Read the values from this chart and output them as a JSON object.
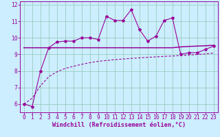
{
  "title": "",
  "xlabel": "Windchill (Refroidissement éolien,°C)",
  "background_color": "#cceeff",
  "grid_color": "#99ccbb",
  "line_color": "#990099",
  "x_values": [
    0,
    1,
    2,
    3,
    4,
    5,
    6,
    7,
    8,
    9,
    10,
    11,
    12,
    13,
    14,
    15,
    16,
    17,
    18,
    19,
    20,
    21,
    22,
    23
  ],
  "y_main": [
    6.0,
    5.85,
    8.0,
    9.4,
    9.75,
    9.8,
    9.8,
    10.0,
    10.0,
    9.9,
    11.3,
    11.05,
    11.05,
    11.7,
    10.5,
    9.8,
    10.1,
    11.05,
    11.2,
    9.0,
    9.1,
    9.1,
    9.3,
    9.5
  ],
  "y_flat": [
    9.4,
    9.4,
    9.4,
    9.4,
    9.4,
    9.4,
    9.4,
    9.4,
    9.4,
    9.4,
    9.4,
    9.4,
    9.4,
    9.4,
    9.4,
    9.4,
    9.4,
    9.4,
    9.4,
    9.45,
    9.48,
    9.5,
    9.52,
    9.55
  ],
  "y_linear": [
    6.0,
    6.35,
    7.1,
    7.65,
    7.95,
    8.15,
    8.28,
    8.4,
    8.5,
    8.58,
    8.63,
    8.68,
    8.72,
    8.76,
    8.79,
    8.82,
    8.85,
    8.88,
    8.9,
    8.93,
    8.96,
    8.99,
    9.03,
    9.08
  ],
  "ylim": [
    5.5,
    12.2
  ],
  "yticks": [
    6,
    7,
    8,
    9,
    10,
    11,
    12
  ],
  "xticks": [
    0,
    1,
    2,
    3,
    4,
    5,
    6,
    7,
    8,
    9,
    10,
    11,
    12,
    13,
    14,
    15,
    16,
    17,
    18,
    19,
    20,
    21,
    22,
    23
  ],
  "font_size": 5.8,
  "xlabel_fontsize": 6.2,
  "marker": "*",
  "marker_size": 3.0,
  "linewidth_main": 0.8,
  "linewidth_flat": 1.1,
  "linewidth_linear": 0.8
}
